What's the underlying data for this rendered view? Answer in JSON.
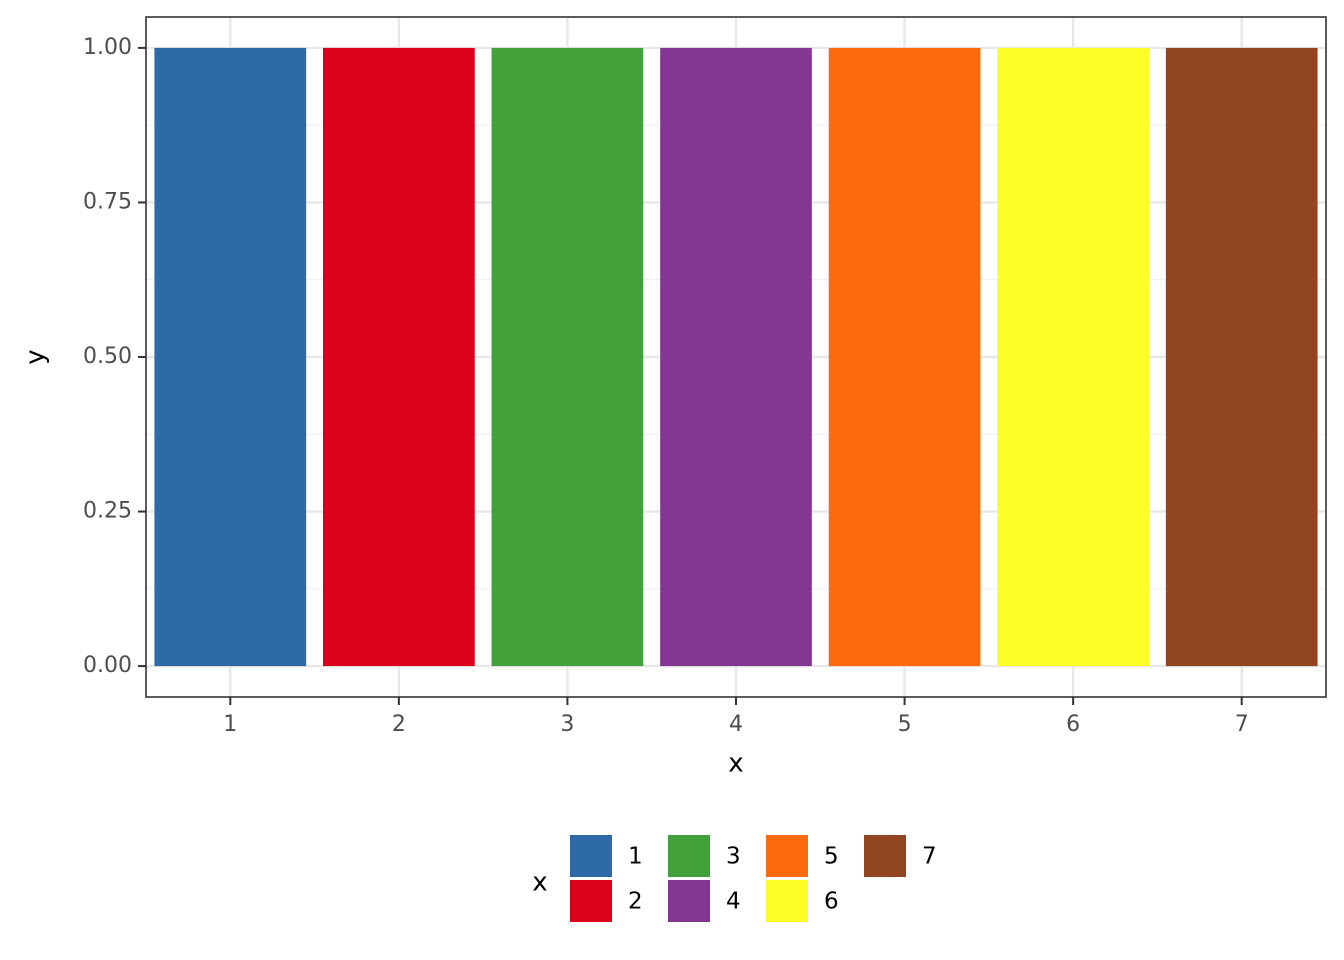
{
  "chart_data": {
    "type": "bar",
    "x_label": "x",
    "y_label": "y",
    "legend_title": "x",
    "categories": [
      "1",
      "2",
      "3",
      "4",
      "5",
      "6",
      "7"
    ],
    "values": [
      1,
      1,
      1,
      1,
      1,
      1,
      1
    ],
    "colors": [
      "#2f6aa8",
      "#db001b",
      "#42a13a",
      "#843792",
      "#fd6a0d",
      "#fdfd27",
      "#914521"
    ],
    "ylim": [
      -0.05,
      1.05
    ],
    "yticks": [
      {
        "value": 0,
        "label": "0.00"
      },
      0.25,
      {
        "value": 0.5,
        "label": "0.50"
      },
      0.75,
      {
        "value": 1,
        "label": "1.00"
      }
    ],
    "grid": true,
    "legend_position": "bottom"
  }
}
